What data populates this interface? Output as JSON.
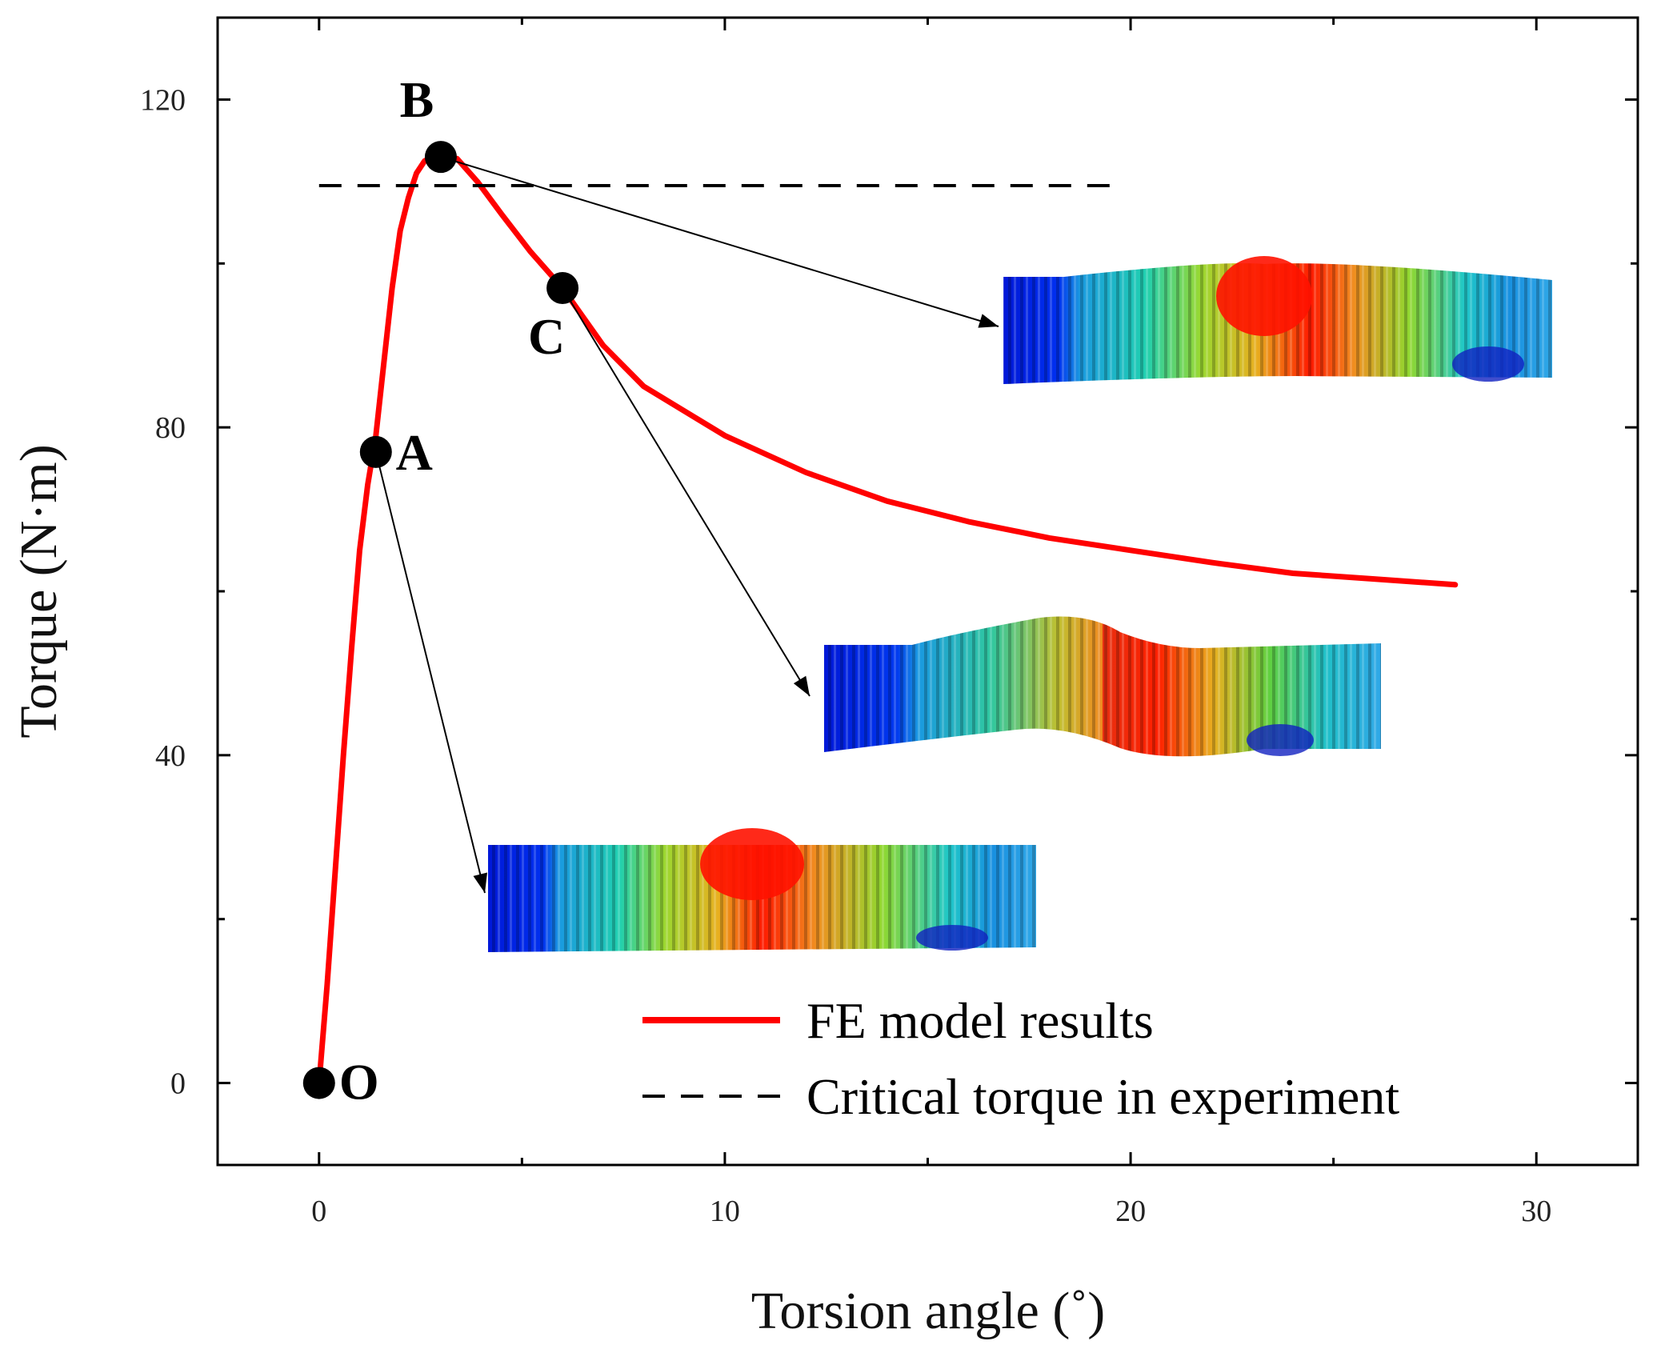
{
  "chart_data": {
    "type": "line",
    "xlabel": "Torsion angle (˚)",
    "ylabel": "Torque (N·m)",
    "xlim": [
      -2.5,
      32.5
    ],
    "ylim": [
      -10,
      130
    ],
    "xticks": [
      0,
      10,
      20,
      30
    ],
    "yticks": [
      0,
      40,
      80,
      120
    ],
    "grid": false,
    "legend_position": "bottom-right",
    "series": [
      {
        "name": "FE model results",
        "color": "#ff0000",
        "style": "solid",
        "x": [
          0,
          0.2,
          0.4,
          0.6,
          0.8,
          1.0,
          1.2,
          1.4,
          1.6,
          1.8,
          2.0,
          2.2,
          2.4,
          2.6,
          2.8,
          3.0,
          3.4,
          3.9,
          4.5,
          5.2,
          6.0,
          7.0,
          8.0,
          10.0,
          12.0,
          14.0,
          16.0,
          18.0,
          20.0,
          22.0,
          24.0,
          26.0,
          28.0
        ],
        "y": [
          0,
          12,
          26,
          40,
          53,
          65,
          73,
          79,
          88,
          97,
          104,
          108,
          111,
          112.5,
          113,
          113,
          112.8,
          110,
          106,
          101.5,
          97,
          90,
          85,
          79,
          74.5,
          71,
          68.5,
          66.5,
          65,
          63.5,
          62.2,
          61.5,
          60.8
        ]
      },
      {
        "name": "Critical torque in experiment",
        "color": "#000000",
        "style": "dashed",
        "x": [
          0,
          19.5
        ],
        "y": [
          109.5,
          109.5
        ]
      }
    ],
    "points": [
      {
        "label": "O",
        "x": 0,
        "y": 0
      },
      {
        "label": "A",
        "x": 1.4,
        "y": 77
      },
      {
        "label": "B",
        "x": 3.0,
        "y": 113
      },
      {
        "label": "C",
        "x": 6.0,
        "y": 97
      }
    ],
    "insets": [
      {
        "point": "B",
        "shape": "slight-buckle"
      },
      {
        "point": "C",
        "shape": "buckled"
      },
      {
        "point": "A",
        "shape": "straight"
      }
    ]
  }
}
